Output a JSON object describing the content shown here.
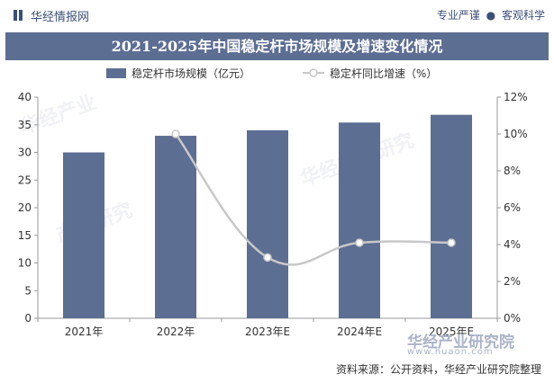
{
  "header": {
    "brand": "华经情报网",
    "tagline_left": "专业严谨",
    "tagline_right": "客观科学",
    "tagline_sep": "●"
  },
  "footer": {
    "source": "资料来源：公开资料，华经产业研究院整理",
    "watermark_logo": "华经产业研究院",
    "watermark_url": "www.huaon.com"
  },
  "colors": {
    "bar": "#5d6e93",
    "line": "#c8c8c8",
    "title_bg": "#5d6e93"
  },
  "chart_data": {
    "type": "bar",
    "title": "2021-2025年中国稳定杆市场规模及增速变化情况",
    "categories": [
      "2021年",
      "2022年",
      "2023年E",
      "2024年E",
      "2025年E"
    ],
    "series": [
      {
        "name": "稳定杆市场规模（亿元）",
        "type": "bar",
        "axis": "left",
        "values": [
          30.0,
          33.0,
          34.0,
          35.4,
          36.8
        ]
      },
      {
        "name": "稳定杆同比增速（%）",
        "type": "line",
        "axis": "right",
        "values": [
          null,
          10.0,
          3.3,
          4.1,
          4.1
        ]
      }
    ],
    "ylim": [
      0,
      40
    ],
    "yticks": [
      "0",
      "5",
      "10",
      "15",
      "20",
      "25",
      "30",
      "35",
      "40"
    ],
    "y2lim": [
      0,
      12
    ],
    "y2ticks": [
      "0%",
      "2%",
      "4%",
      "6%",
      "8%",
      "10%",
      "12%"
    ],
    "legend_position": "top",
    "grid": false
  }
}
